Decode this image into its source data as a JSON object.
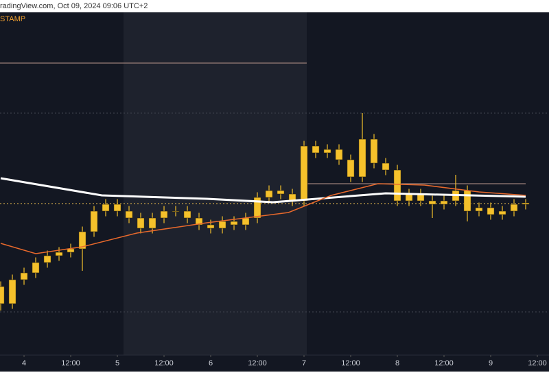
{
  "chart_data": {
    "type": "candlestick",
    "source": "radingView.com, Oct 09, 2024 09:06 UTC+2",
    "exchange": "STAMP",
    "candle_color": "#f5c12b",
    "x": [
      -6,
      -3,
      0,
      3,
      6,
      9,
      12,
      15,
      18,
      21,
      24,
      27,
      30,
      33,
      36,
      39,
      42,
      45,
      48,
      51,
      54,
      57,
      60,
      63,
      66,
      69,
      72,
      75,
      78,
      81,
      84,
      87,
      90,
      93,
      96,
      99,
      102,
      105,
      108,
      111,
      114,
      117,
      120,
      123,
      126,
      129
    ],
    "open": [
      20,
      15,
      22,
      24,
      27,
      29,
      30,
      31,
      36,
      42,
      44,
      42,
      40,
      37,
      40,
      42,
      42,
      40,
      38,
      37,
      39,
      38,
      40,
      46,
      48,
      47,
      45,
      61,
      59,
      60,
      57,
      52,
      63,
      56,
      54,
      45,
      47,
      45,
      44,
      45,
      48,
      42,
      43,
      41,
      42,
      44
    ],
    "high": [
      21.5,
      23.5,
      25.5,
      28.5,
      30.5,
      31.5,
      32.5,
      37.5,
      43.5,
      45.5,
      45.5,
      43.5,
      41.5,
      41.5,
      43.5,
      43.5,
      43.5,
      41.5,
      39.5,
      40.5,
      40.5,
      41.5,
      47.5,
      49.5,
      49.5,
      48.5,
      62.5,
      62.5,
      61.5,
      61.5,
      58.5,
      70.6,
      64.5,
      57.5,
      55.5,
      48.5,
      48.5,
      46.5,
      46.5,
      52.6,
      49.5,
      44.5,
      44.5,
      43.5,
      45.5,
      45.5
    ],
    "low": [
      13,
      13.5,
      20.5,
      22.5,
      25.5,
      27.5,
      28.5,
      24.6,
      34.5,
      40.5,
      40.5,
      38.5,
      35.5,
      35.5,
      38.5,
      40.5,
      38.5,
      36.5,
      35.5,
      35.5,
      36.5,
      36.5,
      38.5,
      44.5,
      45.5,
      43.5,
      43.5,
      57.5,
      57.5,
      55.5,
      50.5,
      50.5,
      54.5,
      52.5,
      43.5,
      43.5,
      43.5,
      40,
      42.5,
      43.5,
      39,
      40.5,
      39.5,
      39.5,
      40.5,
      42.5
    ],
    "close": [
      15,
      22,
      24,
      27,
      29,
      30,
      31,
      36,
      42,
      44,
      42,
      40,
      37,
      40,
      42,
      42,
      40,
      38,
      37,
      39,
      38,
      40,
      46,
      48,
      47,
      45,
      61,
      59,
      60,
      57,
      52,
      63,
      56,
      54,
      45,
      47,
      45,
      44,
      45,
      48,
      42,
      43,
      41,
      42,
      44,
      44.4
    ],
    "lines": [
      {
        "color": "#ffffff",
        "width": 3,
        "x": [
          -6,
          20,
          47,
          64,
          93,
          129
        ],
        "values": [
          51.6,
          46.6,
          45.6,
          44.6,
          47.2,
          46.2
        ]
      },
      {
        "color": "#e8692c",
        "width": 1.5,
        "x": [
          -6,
          3,
          15,
          29,
          47,
          68,
          79,
          91,
          103,
          117,
          129
        ],
        "values": [
          32.6,
          29.6,
          31.6,
          35.6,
          38.6,
          41.6,
          46.6,
          50,
          49.6,
          47.6,
          46.6
        ]
      }
    ],
    "levels": [
      {
        "value": 85.2,
        "x": [
          -6.18,
          72.7
        ],
        "color": "#9a7f78",
        "dash": false
      },
      {
        "value": 50,
        "x": [
          72.7,
          129
        ],
        "color": "#9a7f78",
        "dash": false
      },
      {
        "value": 44.2,
        "x": [
          -6.18,
          129
        ],
        "color": "#c8a24a",
        "dash": true
      },
      {
        "value": 70.6,
        "x": [
          -6.18,
          135
        ],
        "color": "#3a3e48",
        "dash": true
      },
      {
        "value": 12.6,
        "x": [
          -6.18,
          135
        ],
        "color": "#3a3e48",
        "dash": true
      }
    ],
    "xlim": [
      -6.18,
      135
    ],
    "ylim": [
      0,
      100
    ],
    "xticks": [
      {
        "value": 0,
        "label": "4"
      },
      {
        "value": 12,
        "label": "12:00"
      },
      {
        "value": 24,
        "label": "5"
      },
      {
        "value": 36,
        "label": "12:00"
      },
      {
        "value": 48,
        "label": "6"
      },
      {
        "value": 60,
        "label": "12:00"
      },
      {
        "value": 72,
        "label": "7"
      },
      {
        "value": 84,
        "label": "12:00"
      },
      {
        "value": 96,
        "label": "8"
      },
      {
        "value": 108,
        "label": "12:00"
      },
      {
        "value": 120,
        "label": "9"
      },
      {
        "value": 132,
        "label": "12:00"
      }
    ]
  }
}
